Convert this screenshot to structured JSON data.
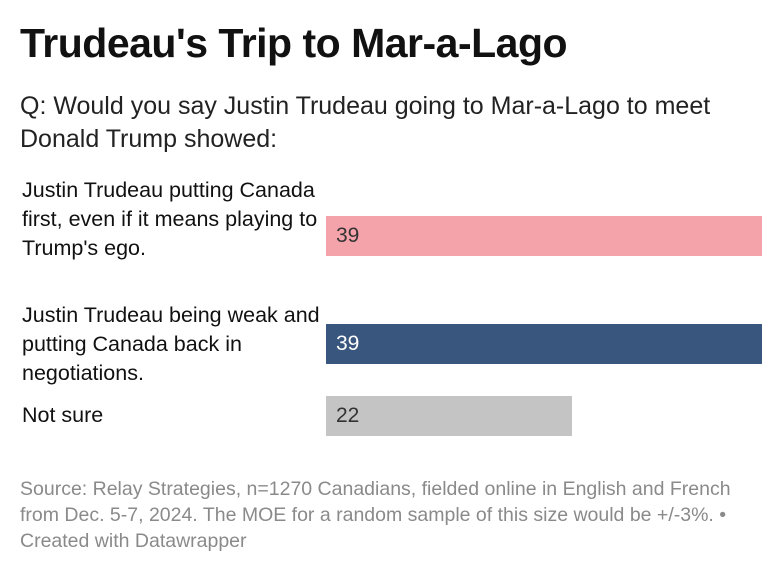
{
  "title": "Trudeau's Trip to Mar-a-Lago",
  "subtitle": "Q: Would you say Justin Trudeau going to Mar-a-Lago to meet Donald Trump showed:",
  "footer": {
    "source": "Source: Relay Strategies, n=1270 Canadians, fielded online in English and French from Dec. 5-7, 2024. The MOE for a random sample of this size would be +/-3%.",
    "credit": "• Created with Datawrapper"
  },
  "chart_data": {
    "type": "bar",
    "orientation": "horizontal",
    "title": "Trudeau's Trip to Mar-a-Lago",
    "categories": [
      "Justin Trudeau putting Canada first, even if it means playing to Trump's ego.",
      "Justin Trudeau being weak and putting Canada back in negotiations.",
      "Not sure"
    ],
    "values": [
      39,
      39,
      22
    ],
    "colors": [
      "#f5a3ab",
      "#38567e",
      "#c4c4c4"
    ],
    "value_label_colors": [
      "#333333",
      "#ffffff",
      "#333333"
    ],
    "xlim": [
      0,
      39
    ],
    "grid": false
  }
}
